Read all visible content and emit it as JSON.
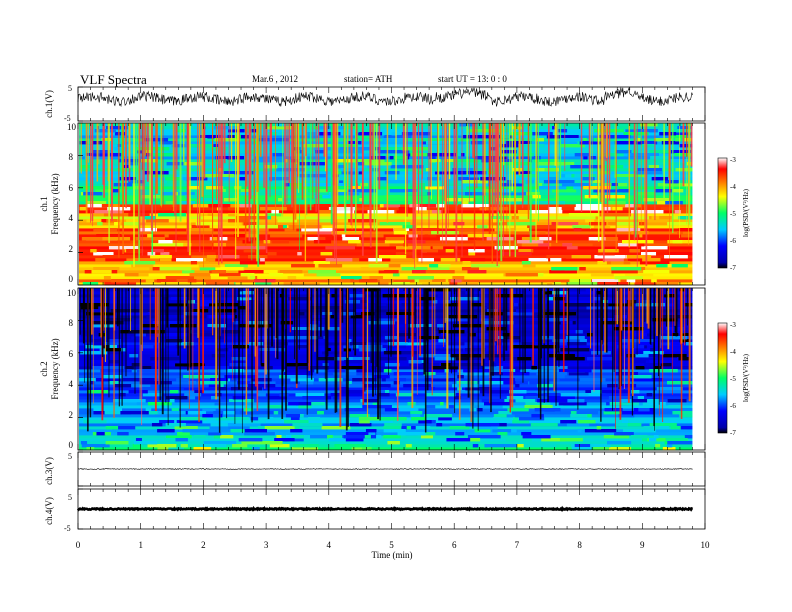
{
  "header": {
    "title": "VLF  Spectra",
    "date": "Mar.6  , 2012",
    "station": "station= ATH",
    "start": "start  UT  =    13: 0  : 0"
  },
  "chart_data": [
    {
      "type": "line",
      "panel": "ch1-waveform",
      "ylabel": "ch.1(V)",
      "y_ticks": [
        "5",
        "-5"
      ],
      "ylim": [
        -5,
        5
      ],
      "xlim": [
        0,
        10
      ],
      "x_end": 9.8,
      "description_values": {
        "baseline": 1.5,
        "amplitude": 1.2
      }
    },
    {
      "type": "heatmap",
      "panel": "ch1-spectrogram",
      "ylabel": "ch.1\nFrequency  (kHz)",
      "ylabel_lines": [
        "ch.1",
        "Frequency  (kHz)"
      ],
      "y_ticks": [
        "10",
        "8",
        "6",
        "4",
        "2",
        "0"
      ],
      "ylim": [
        0,
        10
      ],
      "xlim": [
        0,
        10
      ],
      "x_end": 9.8,
      "colorbar": {
        "label": "log(PSD/(V²/Hz)",
        "ticks": [
          "-3",
          "-4",
          "-5",
          "-6",
          "-7"
        ],
        "range": [
          -7,
          -3
        ]
      },
      "band_levels": [
        {
          "f0": 0.0,
          "f1": 0.3,
          "level": -4.0
        },
        {
          "f0": 0.3,
          "f1": 1.5,
          "level": -4.2
        },
        {
          "f0": 1.5,
          "f1": 3.6,
          "level": -3.6
        },
        {
          "f0": 3.6,
          "f1": 4.4,
          "level": -4.3
        },
        {
          "f0": 4.4,
          "f1": 5.0,
          "level": -3.7
        },
        {
          "f0": 5.0,
          "f1": 6.4,
          "level": -5.2
        },
        {
          "f0": 6.4,
          "f1": 10.0,
          "level": -5.5
        }
      ]
    },
    {
      "type": "heatmap",
      "panel": "ch2-spectrogram",
      "ylabel_lines": [
        "ch.2",
        "Frequency  (kHz)"
      ],
      "y_ticks": [
        "10",
        "8",
        "6",
        "4",
        "2",
        "0"
      ],
      "ylim": [
        0,
        10
      ],
      "xlim": [
        0,
        10
      ],
      "x_end": 9.8,
      "colorbar": {
        "label": "log(PSD/(V²/Hz)",
        "ticks": [
          "-3",
          "-4",
          "-5",
          "-6",
          "-7"
        ],
        "range": [
          -7,
          -3
        ]
      },
      "band_levels": [
        {
          "f0": 0.0,
          "f1": 1.0,
          "level": -5.3
        },
        {
          "f0": 1.0,
          "f1": 3.0,
          "level": -5.6
        },
        {
          "f0": 3.0,
          "f1": 5.0,
          "level": -6.0
        },
        {
          "f0": 5.0,
          "f1": 7.0,
          "level": -6.3
        },
        {
          "f0": 7.0,
          "f1": 10.0,
          "level": -6.6
        }
      ]
    },
    {
      "type": "line",
      "panel": "ch3-waveform",
      "ylabel": "ch.3(V)",
      "y_ticks": [
        "5"
      ],
      "ylim": [
        -5,
        5
      ],
      "xlim": [
        0,
        10
      ],
      "x_end": 9.8,
      "description_values": {
        "baseline": 0.0
      }
    },
    {
      "type": "line",
      "panel": "ch4-waveform",
      "ylabel": "ch.4(V)",
      "y_ticks": [
        "5",
        "-5"
      ],
      "ylim": [
        -5,
        5
      ],
      "xlim": [
        0,
        10
      ],
      "x_end": 9.8,
      "description_values": {
        "baseline": 0.0
      }
    }
  ],
  "x_axis": {
    "label": "Time  (min)",
    "ticks": [
      "0",
      "1",
      "2",
      "3",
      "4",
      "5",
      "6",
      "7",
      "8",
      "9",
      "10"
    ]
  },
  "colors": {
    "frame": "#000000",
    "trace": "#000000"
  }
}
